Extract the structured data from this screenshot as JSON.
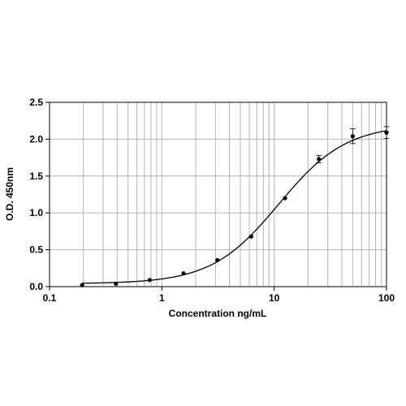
{
  "chart_data": {
    "type": "scatter",
    "title": "",
    "xlabel": "Concentration ng/mL",
    "ylabel": "O.D. 450nm",
    "xscale": "log",
    "xlim": [
      0.1,
      100
    ],
    "ylim": [
      0,
      2.5
    ],
    "x_ticks": [
      {
        "value": 0.1,
        "label": "0.1"
      },
      {
        "value": 1,
        "label": "1"
      },
      {
        "value": 10,
        "label": "10"
      },
      {
        "value": 100,
        "label": "100"
      }
    ],
    "y_ticks": [
      {
        "value": 0,
        "label": "0.0"
      },
      {
        "value": 0.5,
        "label": "0.5"
      },
      {
        "value": 1,
        "label": "1.0"
      },
      {
        "value": 1.5,
        "label": "1.5"
      },
      {
        "value": 2,
        "label": "2.0"
      },
      {
        "value": 2.5,
        "label": "2.5"
      }
    ],
    "grid": {
      "x_minor": true,
      "y_major": true
    },
    "legend": "none",
    "series": [
      {
        "x": [
          0.195,
          0.39,
          0.78,
          1.56,
          3.125,
          6.25,
          12.5,
          25,
          50,
          100
        ],
        "y": [
          0.02,
          0.04,
          0.09,
          0.18,
          0.36,
          0.68,
          1.2,
          1.73,
          2.04,
          2.09
        ],
        "error": [
          0,
          0,
          0,
          0,
          0,
          0,
          0,
          0.05,
          0.1,
          0.08
        ]
      }
    ],
    "fit_curve": {
      "model": "4PL",
      "bottom": 0.04,
      "top": 2.2,
      "ec50": 11,
      "hill": 1.45
    },
    "colors": {
      "marker": "#000000",
      "curve": "#000000",
      "grid": "#b4b4b4",
      "axis": "#000000"
    }
  }
}
